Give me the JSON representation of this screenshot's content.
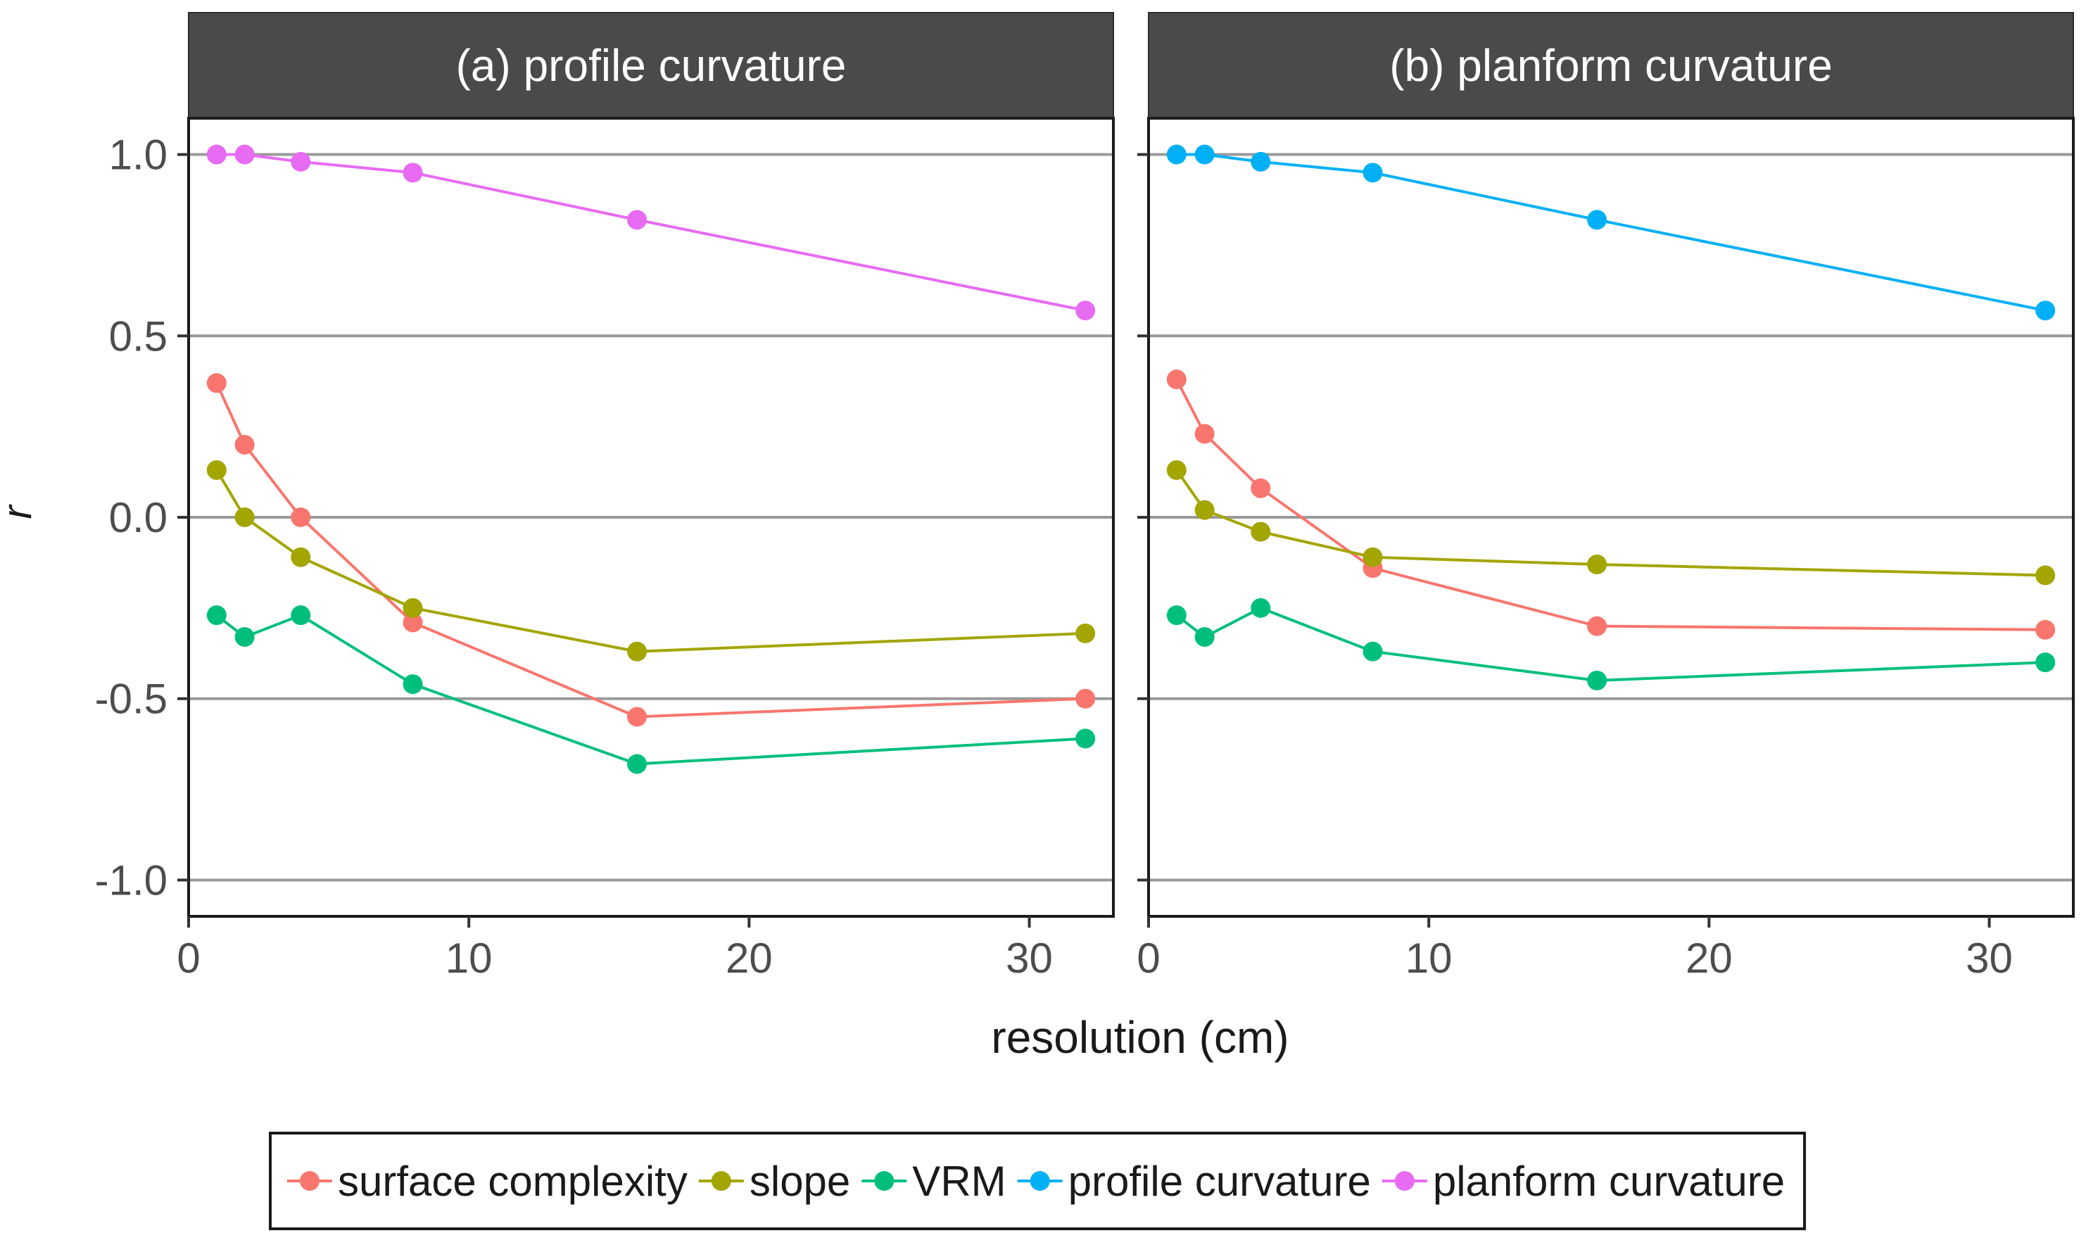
{
  "chart_data": {
    "type": "line",
    "x_label": "resolution (cm)",
    "y_label": "r",
    "x_range": [
      0,
      33
    ],
    "y_range": [
      -1.1,
      1.1
    ],
    "x_ticks": [
      {
        "value": 0,
        "label": "0"
      },
      {
        "value": 10,
        "label": "10"
      },
      {
        "value": 20,
        "label": "20"
      },
      {
        "value": 30,
        "label": "30"
      }
    ],
    "y_ticks": [
      {
        "value": 1.0,
        "label": "1.0"
      },
      {
        "value": 0.5,
        "label": "0.5"
      },
      {
        "value": 0.0,
        "label": "0.0"
      },
      {
        "value": -0.5,
        "label": "-0.5"
      },
      {
        "value": -1.0,
        "label": "-1.0"
      }
    ],
    "grid": "horizontal major",
    "legend_position": "bottom",
    "legend": [
      {
        "name": "surface complexity",
        "color": "#F8766D"
      },
      {
        "name": "slope",
        "color": "#A3A500"
      },
      {
        "name": "VRM",
        "color": "#00BF7D"
      },
      {
        "name": "profile curvature",
        "color": "#00B0F6"
      },
      {
        "name": "planform curvature",
        "color": "#E76BF3"
      }
    ],
    "x": [
      1,
      2,
      4,
      8,
      16,
      32
    ],
    "panels": [
      {
        "title": "(a) profile curvature",
        "series": [
          {
            "name": "surface complexity",
            "color": "#F8766D",
            "values": [
              0.37,
              0.2,
              0.0,
              -0.29,
              -0.55,
              -0.5
            ]
          },
          {
            "name": "slope",
            "color": "#A3A500",
            "values": [
              0.13,
              0.0,
              -0.11,
              -0.25,
              -0.37,
              -0.32
            ]
          },
          {
            "name": "VRM",
            "color": "#00BF7D",
            "values": [
              -0.27,
              -0.33,
              -0.27,
              -0.46,
              -0.68,
              -0.61
            ]
          },
          {
            "name": "planform curvature",
            "color": "#E76BF3",
            "values": [
              1.0,
              1.0,
              0.98,
              0.95,
              0.82,
              0.57
            ]
          }
        ]
      },
      {
        "title": "(b) planform curvature",
        "series": [
          {
            "name": "surface complexity",
            "color": "#F8766D",
            "values": [
              0.38,
              0.23,
              0.08,
              -0.14,
              -0.3,
              -0.31
            ]
          },
          {
            "name": "slope",
            "color": "#A3A500",
            "values": [
              0.13,
              0.02,
              -0.04,
              -0.11,
              -0.13,
              -0.16
            ]
          },
          {
            "name": "VRM",
            "color": "#00BF7D",
            "values": [
              -0.27,
              -0.33,
              -0.25,
              -0.37,
              -0.45,
              -0.4
            ]
          },
          {
            "name": "profile curvature",
            "color": "#00B0F6",
            "values": [
              1.0,
              1.0,
              0.98,
              0.95,
              0.82,
              0.57
            ]
          }
        ]
      }
    ]
  }
}
